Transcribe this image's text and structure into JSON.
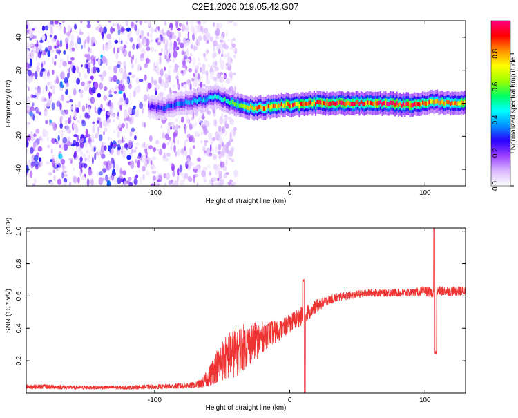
{
  "title": "C2E1.2026.019.05.42.G07",
  "chart_data": [
    {
      "type": "heatmap",
      "xlabel": "Height of straight line (km)",
      "ylabel": "Frequency (Hz)",
      "xlim": [
        -195,
        130
      ],
      "ylim": [
        -50,
        50
      ],
      "x_ticks": [
        -100,
        0,
        100
      ],
      "x_tick_labels": [
        "-100",
        "0",
        "100"
      ],
      "y_ticks": [
        -40,
        -20,
        0,
        20,
        40
      ],
      "y_tick_labels": [
        "-40",
        "-20",
        "0",
        "20",
        "40"
      ],
      "grid": false,
      "colorbar": {
        "label": "Normalized spectral amplitude",
        "range": [
          0,
          1
        ],
        "ticks": [
          0.0,
          0.2,
          0.4,
          0.6,
          0.8
        ],
        "tick_labels": [
          "0.0",
          "0.2",
          "0.4",
          "0.6",
          "0.8"
        ],
        "colormap": [
          "#ffffff",
          "#d9b8ff",
          "#9b40ff",
          "#2b00ff",
          "#0090ff",
          "#00ffff",
          "#00ff60",
          "#a0ff00",
          "#ffff00",
          "#ff9000",
          "#ff0000",
          "#ff0080"
        ]
      },
      "noise_region_x": [
        -195,
        -65
      ],
      "ridge": [
        {
          "x": -105,
          "y": -2,
          "amp": 0.25
        },
        {
          "x": -95,
          "y": -3,
          "amp": 0.3
        },
        {
          "x": -85,
          "y": -1,
          "amp": 0.35
        },
        {
          "x": -75,
          "y": 1,
          "amp": 0.4
        },
        {
          "x": -65,
          "y": 2,
          "amp": 0.45
        },
        {
          "x": -55,
          "y": 4,
          "amp": 0.45
        },
        {
          "x": -45,
          "y": 1,
          "amp": 0.55
        },
        {
          "x": -35,
          "y": -2,
          "amp": 0.7
        },
        {
          "x": -25,
          "y": -3,
          "amp": 0.8
        },
        {
          "x": -15,
          "y": -2,
          "amp": 0.85
        },
        {
          "x": -5,
          "y": -1,
          "amp": 0.85
        },
        {
          "x": 5,
          "y": -1,
          "amp": 0.9
        },
        {
          "x": 15,
          "y": 0,
          "amp": 0.9
        },
        {
          "x": 30,
          "y": 0,
          "amp": 0.95
        },
        {
          "x": 50,
          "y": 0,
          "amp": 0.95
        },
        {
          "x": 70,
          "y": 0,
          "amp": 0.95
        },
        {
          "x": 90,
          "y": -1,
          "amp": 0.95
        },
        {
          "x": 105,
          "y": 1,
          "amp": 0.8
        },
        {
          "x": 120,
          "y": 0,
          "amp": 0.85
        },
        {
          "x": 130,
          "y": 0,
          "amp": 0.85
        }
      ]
    },
    {
      "type": "line",
      "xlabel": "Height of straight line (km)",
      "ylabel": "SNR (10 * v/v)",
      "scale_label": "(x10⁴)",
      "xlim": [
        -195,
        130
      ],
      "ylim": [
        0,
        1.02
      ],
      "x_ticks": [
        -100,
        0,
        100
      ],
      "x_tick_labels": [
        "-100",
        "0",
        "100"
      ],
      "y_ticks": [
        0.2,
        0.4,
        0.6,
        0.8,
        1.0
      ],
      "y_tick_labels": [
        "0.2",
        "0.4",
        "0.6",
        "0.8",
        "1.0"
      ],
      "grid": false,
      "series": [
        {
          "color": "#ee3333",
          "x": [
            -195,
            -180,
            -160,
            -140,
            -120,
            -100,
            -90,
            -80,
            -70,
            -65,
            -60,
            -55,
            -50,
            -45,
            -40,
            -35,
            -30,
            -25,
            -20,
            -15,
            -10,
            -5,
            0,
            5,
            10,
            15,
            20,
            25,
            30,
            40,
            50,
            60,
            70,
            80,
            90,
            100,
            105,
            110,
            120,
            130
          ],
          "y": [
            0.04,
            0.04,
            0.035,
            0.035,
            0.035,
            0.04,
            0.04,
            0.045,
            0.05,
            0.06,
            0.1,
            0.16,
            0.2,
            0.23,
            0.26,
            0.28,
            0.3,
            0.32,
            0.35,
            0.37,
            0.38,
            0.4,
            0.43,
            0.46,
            0.48,
            0.51,
            0.54,
            0.56,
            0.58,
            0.6,
            0.61,
            0.62,
            0.62,
            0.62,
            0.62,
            0.63,
            0.62,
            0.63,
            0.63,
            0.63
          ],
          "noise": [
            0.015,
            0.015,
            0.012,
            0.012,
            0.012,
            0.015,
            0.015,
            0.02,
            0.02,
            0.03,
            0.06,
            0.1,
            0.13,
            0.15,
            0.16,
            0.15,
            0.13,
            0.12,
            0.1,
            0.08,
            0.07,
            0.06,
            0.06,
            0.06,
            0.06,
            0.05,
            0.04,
            0.03,
            0.03,
            0.025,
            0.025,
            0.025,
            0.025,
            0.025,
            0.025,
            0.03,
            0.03,
            0.03,
            0.03,
            0.03
          ],
          "spikes": [
            {
              "x": 11,
              "y": 0.0
            },
            {
              "x": 10,
              "y": 0.7
            },
            {
              "x": 107,
              "y": 1.02
            },
            {
              "x": 108,
              "y": 0.25
            }
          ]
        }
      ]
    }
  ]
}
